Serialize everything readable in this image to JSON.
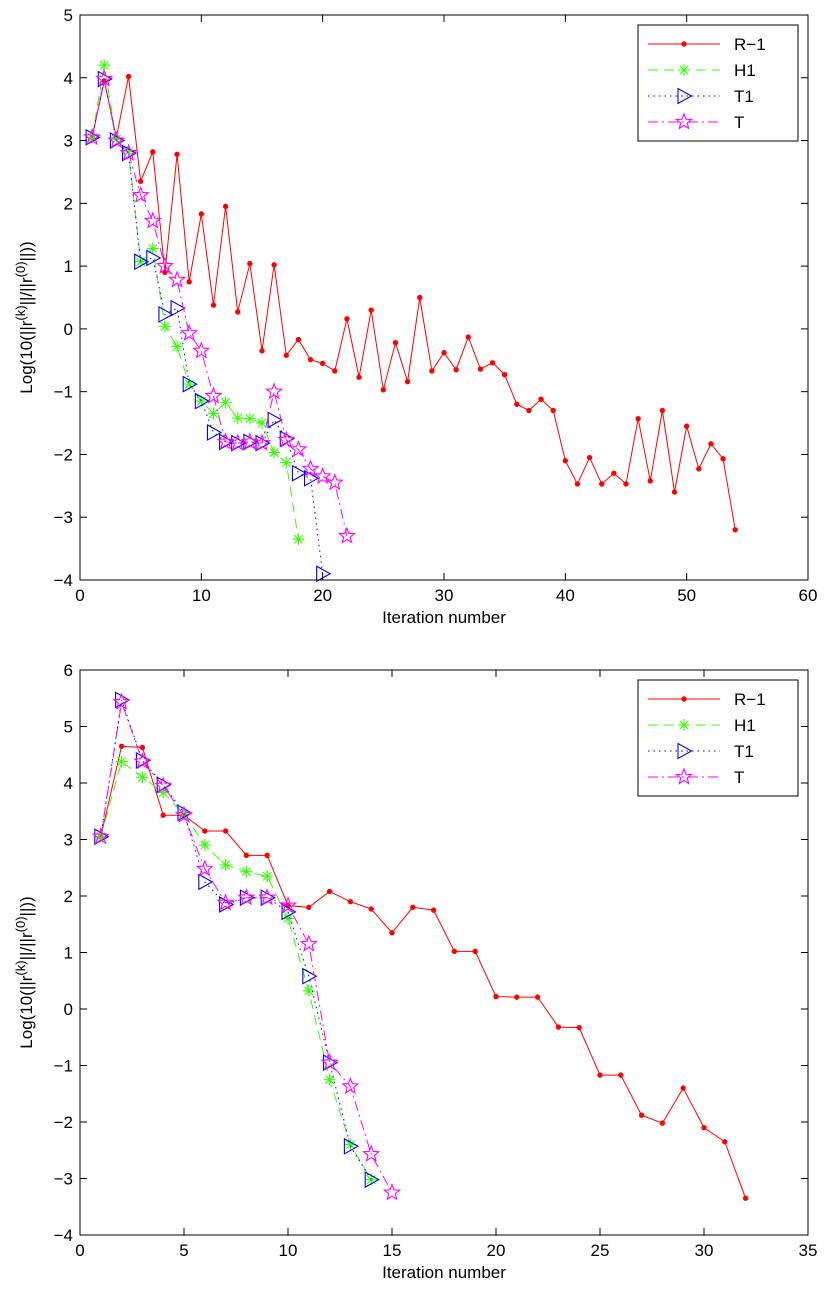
{
  "chart_data": [
    {
      "type": "line",
      "xlabel": "Iteration number",
      "ylabel": "Log(10(||r(k)||/||r(0)||))",
      "xlim": [
        0,
        60
      ],
      "ylim": [
        -4,
        5
      ],
      "xticks": [
        0,
        10,
        20,
        30,
        40,
        50,
        60
      ],
      "yticks": [
        -4,
        -3,
        -2,
        -1,
        0,
        1,
        2,
        3,
        4,
        5
      ],
      "grid": false,
      "legend": "top-right",
      "series": [
        {
          "name": "R−1",
          "color": "#ff0000",
          "marker": "dot",
          "dash": "solid",
          "x": [
            1,
            2,
            3,
            4,
            5,
            6,
            7,
            8,
            9,
            10,
            11,
            12,
            13,
            14,
            15,
            16,
            17,
            18,
            19,
            20,
            21,
            22,
            23,
            24,
            25,
            26,
            27,
            28,
            29,
            30,
            31,
            32,
            33,
            34,
            35,
            36,
            37,
            38,
            39,
            40,
            41,
            42,
            43,
            44,
            45,
            46,
            47,
            48,
            49,
            50,
            51,
            52,
            53,
            54
          ],
          "y": [
            3.05,
            3.95,
            3.05,
            4.02,
            2.35,
            2.82,
            0.9,
            2.78,
            0.75,
            1.83,
            0.38,
            1.95,
            0.27,
            1.04,
            -0.35,
            1.02,
            -0.42,
            -0.17,
            -0.49,
            -0.55,
            -0.67,
            0.16,
            -0.77,
            0.3,
            -0.97,
            -0.22,
            -0.84,
            0.5,
            -0.67,
            -0.38,
            -0.65,
            -0.13,
            -0.64,
            -0.54,
            -0.73,
            -1.2,
            -1.3,
            -1.12,
            -1.3,
            -2.1,
            -2.47,
            -2.05,
            -2.47,
            -2.3,
            -2.47,
            -1.43,
            -2.42,
            -1.3,
            -2.6,
            -1.55,
            -2.23,
            -1.83,
            -2.07,
            -3.2
          ]
        },
        {
          "name": "H1",
          "color": "#33ff00",
          "marker": "asterisk",
          "dash": "dashed",
          "x": [
            1,
            2,
            3,
            4,
            5,
            6,
            7,
            8,
            9,
            10,
            11,
            12,
            13,
            14,
            15,
            16,
            17,
            18
          ],
          "y": [
            3.05,
            4.2,
            3.02,
            2.82,
            1.07,
            1.28,
            0.04,
            -0.28,
            -0.88,
            -1.15,
            -1.35,
            -1.17,
            -1.42,
            -1.43,
            -1.5,
            -1.97,
            -2.13,
            -3.35
          ]
        },
        {
          "name": "T1",
          "color": "#0000ff",
          "marker": "triangle",
          "dash": "dotted",
          "x": [
            1,
            2,
            3,
            4,
            5,
            6,
            7,
            8,
            9,
            10,
            11,
            12,
            13,
            14,
            15,
            16,
            17,
            18,
            19,
            20
          ],
          "y": [
            3.05,
            3.98,
            3.0,
            2.8,
            1.07,
            1.13,
            0.23,
            0.33,
            -0.88,
            -1.15,
            -1.65,
            -1.8,
            -1.82,
            -1.8,
            -1.82,
            -1.45,
            -1.75,
            -2.3,
            -2.38,
            -3.9
          ]
        },
        {
          "name": "T",
          "color": "#ff00ff",
          "marker": "star",
          "dash": "dashdot",
          "x": [
            1,
            2,
            3,
            4,
            5,
            6,
            7,
            8,
            9,
            10,
            11,
            12,
            13,
            14,
            15,
            16,
            17,
            18,
            19,
            20,
            21,
            22
          ],
          "y": [
            3.05,
            3.98,
            3.0,
            2.8,
            2.13,
            1.72,
            1.0,
            0.78,
            -0.07,
            -0.35,
            -1.07,
            -1.8,
            -1.82,
            -1.8,
            -1.82,
            -1.0,
            -1.77,
            -1.92,
            -2.23,
            -2.35,
            -2.45,
            -3.3
          ]
        }
      ]
    },
    {
      "type": "line",
      "xlabel": "Iteration number",
      "ylabel": "Log(10(||r(k)||/||r(0)||))",
      "xlim": [
        0,
        35
      ],
      "ylim": [
        -4,
        6
      ],
      "xticks": [
        0,
        5,
        10,
        15,
        20,
        25,
        30,
        35
      ],
      "yticks": [
        -4,
        -3,
        -2,
        -1,
        0,
        1,
        2,
        3,
        4,
        5,
        6
      ],
      "grid": false,
      "legend": "top-right",
      "series": [
        {
          "name": "R−1",
          "color": "#ff0000",
          "marker": "dot",
          "dash": "solid",
          "x": [
            1,
            2,
            3,
            4,
            5,
            6,
            7,
            8,
            9,
            10,
            11,
            12,
            13,
            14,
            15,
            16,
            17,
            18,
            19,
            20,
            21,
            22,
            23,
            24,
            25,
            26,
            27,
            28,
            29,
            30,
            31,
            32
          ],
          "y": [
            3.05,
            4.65,
            4.63,
            3.43,
            3.43,
            3.15,
            3.15,
            2.72,
            2.72,
            1.83,
            1.8,
            2.08,
            1.9,
            1.77,
            1.35,
            1.8,
            1.75,
            1.02,
            1.02,
            0.22,
            0.21,
            0.21,
            -0.32,
            -0.33,
            -1.17,
            -1.17,
            -1.88,
            -2.02,
            -1.4,
            -2.1,
            -2.35,
            -3.35
          ]
        },
        {
          "name": "H1",
          "color": "#33ff00",
          "marker": "asterisk",
          "dash": "dashed",
          "x": [
            1,
            2,
            3,
            4,
            5,
            6,
            7,
            8,
            9,
            10,
            11,
            12,
            13,
            14
          ],
          "y": [
            3.05,
            4.38,
            4.1,
            3.83,
            3.45,
            2.9,
            2.55,
            2.43,
            2.35,
            1.6,
            0.32,
            -1.25,
            -2.4,
            -3.02
          ]
        },
        {
          "name": "T1",
          "color": "#0000ff",
          "marker": "triangle",
          "dash": "dotted",
          "x": [
            1,
            2,
            3,
            4,
            5,
            6,
            7,
            8,
            9,
            10,
            11,
            12,
            13,
            14
          ],
          "y": [
            3.05,
            5.47,
            4.4,
            3.97,
            3.47,
            2.25,
            1.85,
            1.97,
            1.97,
            1.72,
            0.58,
            -0.95,
            -2.43,
            -3.02
          ]
        },
        {
          "name": "T",
          "color": "#ff00ff",
          "marker": "star",
          "dash": "dashdot",
          "x": [
            1,
            2,
            3,
            4,
            5,
            6,
            7,
            8,
            9,
            10,
            11,
            12,
            13,
            14,
            15
          ],
          "y": [
            3.05,
            5.43,
            4.38,
            3.95,
            3.43,
            2.48,
            1.88,
            1.97,
            1.97,
            1.83,
            1.15,
            -0.95,
            -1.37,
            -2.57,
            -3.25
          ]
        }
      ]
    }
  ]
}
